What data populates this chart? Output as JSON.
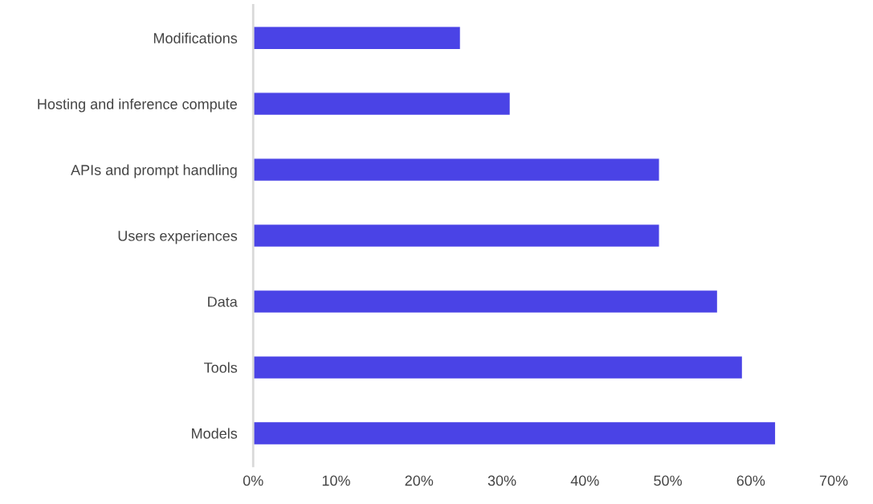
{
  "chart_data": {
    "type": "bar",
    "orientation": "horizontal",
    "categories": [
      "Modifications",
      "Hosting and inference compute",
      "APIs and prompt handling",
      "Users experiences",
      "Data",
      "Tools",
      "Models"
    ],
    "values": [
      25,
      31,
      49,
      49,
      56,
      59,
      63
    ],
    "color": "#4a43e6",
    "xlim": [
      0,
      70
    ],
    "xticks": [
      {
        "value": 0,
        "label": "0%"
      },
      {
        "value": 10,
        "label": "10%"
      },
      {
        "value": 20,
        "label": "20%"
      },
      {
        "value": 30,
        "label": "30%"
      },
      {
        "value": 40,
        "label": "40%"
      },
      {
        "value": 50,
        "label": "50%"
      },
      {
        "value": 60,
        "label": "60%"
      },
      {
        "value": 70,
        "label": "70%"
      }
    ],
    "grid": false,
    "legend": false
  }
}
